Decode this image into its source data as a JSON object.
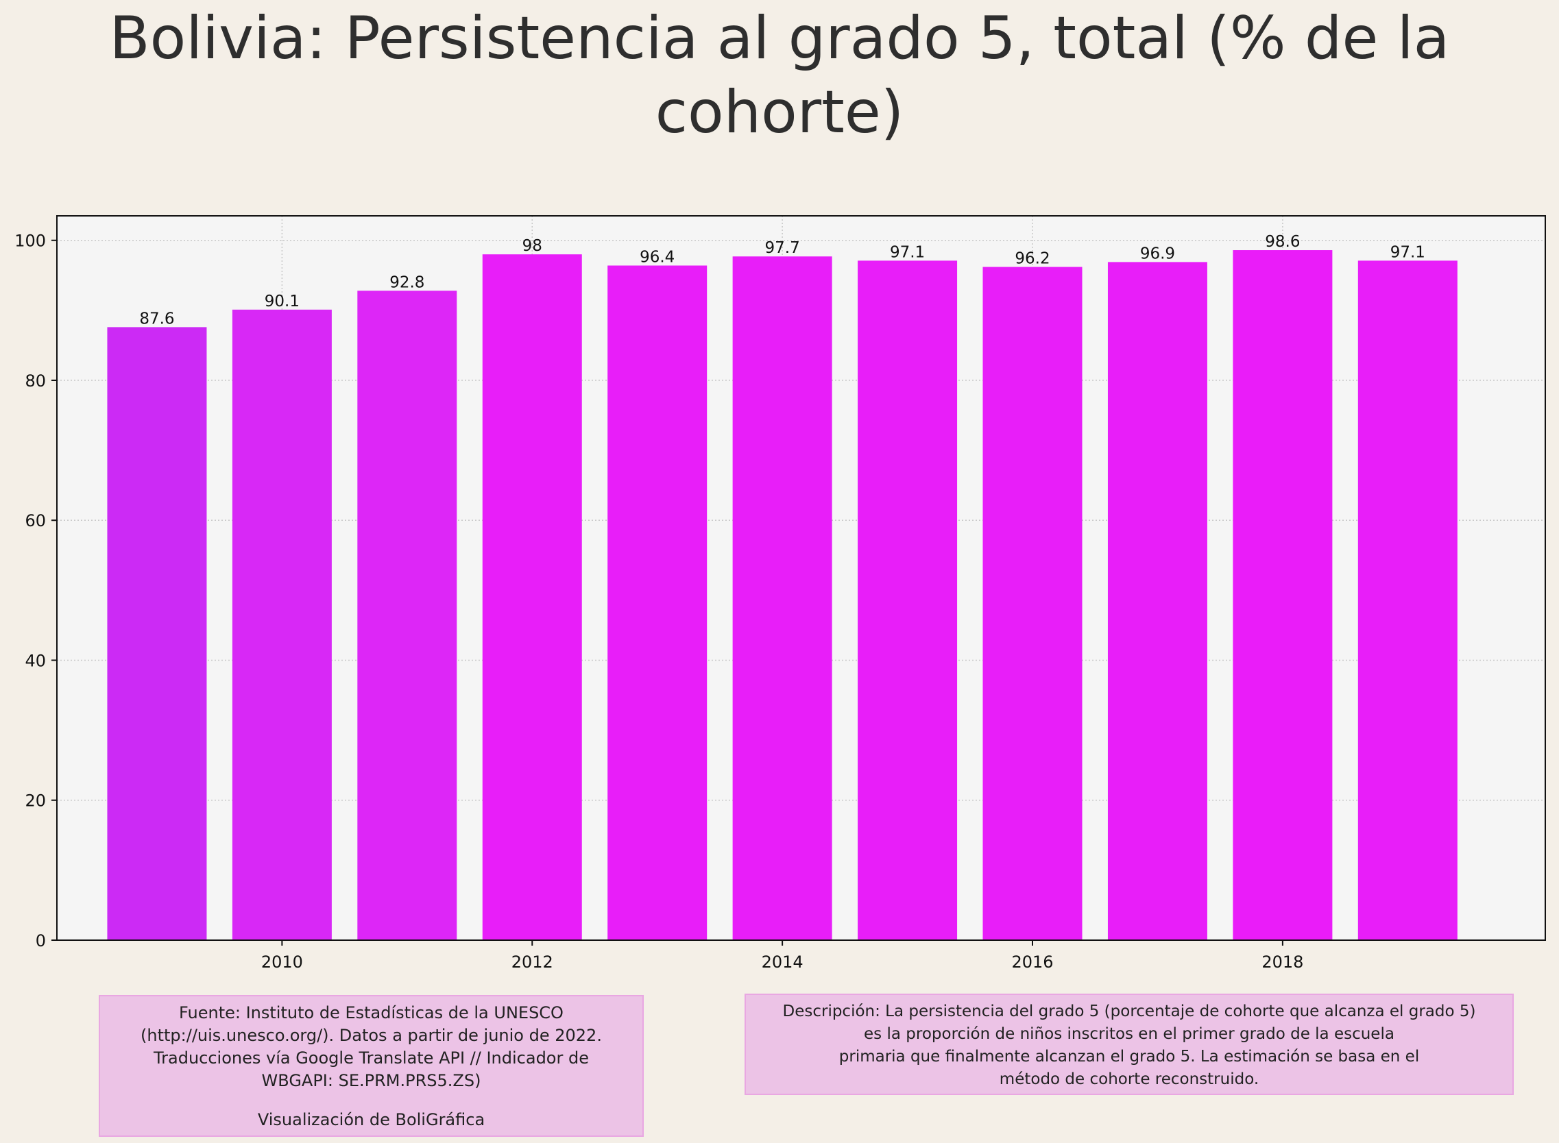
{
  "title_lines": [
    "Bolivia:  Persistencia al grado 5, total (% de la",
    "cohorte)"
  ],
  "source": {
    "lines": [
      "Fuente: Instituto de Estadísticas de la UNESCO",
      "(http://uis.unesco.org/). Datos a partir de junio de 2022.",
      "Traducciones vía Google Translate API // Indicador de",
      "WBGAPI: SE.PRM.PRS5.ZS)"
    ],
    "credit": "Visualización de BoliGráfica"
  },
  "description": {
    "lines": [
      "Descripción: La persistencia del grado 5 (porcentaje de cohorte que alcanza el grado 5)",
      "es la proporción de niños inscritos en el primer grado de la escuela",
      "primaria que finalmente alcanzan el grado 5. La estimación se basa en el",
      "método de cohorte reconstruido."
    ]
  },
  "colors": {
    "background": "#f4efe7",
    "plot_background": "#f5f5f5",
    "box_fill": "#ecc3e6",
    "box_border": "#e9a7e2",
    "bar_colors": [
      "#cc2af5",
      "#d828f6",
      "#dd26f7",
      "#e81ef9",
      "#e81ef9",
      "#e81ef9",
      "#e81ef9",
      "#e81ef9",
      "#e81ef9",
      "#ea1cf9",
      "#e81ef9"
    ]
  },
  "chart_data": {
    "type": "bar",
    "title": "Bolivia:  Persistencia al grado 5, total (% de la cohorte)",
    "xlabel": "",
    "ylabel": "",
    "x": [
      2009,
      2010,
      2011,
      2012,
      2013,
      2014,
      2015,
      2016,
      2017,
      2018,
      2019
    ],
    "values": [
      87.6,
      90.1,
      92.8,
      98,
      96.4,
      97.7,
      97.1,
      96.2,
      96.9,
      98.6,
      97.1
    ],
    "value_labels": [
      "87.6",
      "90.1",
      "92.8",
      "98",
      "96.4",
      "97.7",
      "97.1",
      "96.2",
      "96.9",
      "98.6",
      "97.1"
    ],
    "xticks": [
      "2010",
      "2012",
      "2014",
      "2016",
      "2018"
    ],
    "yticks": [
      "0",
      "20",
      "40",
      "60",
      "80",
      "100"
    ],
    "ylim": [
      0,
      103.5
    ],
    "xlim": [
      2008.2,
      2020.1
    ],
    "grid": true,
    "legend": "none"
  }
}
